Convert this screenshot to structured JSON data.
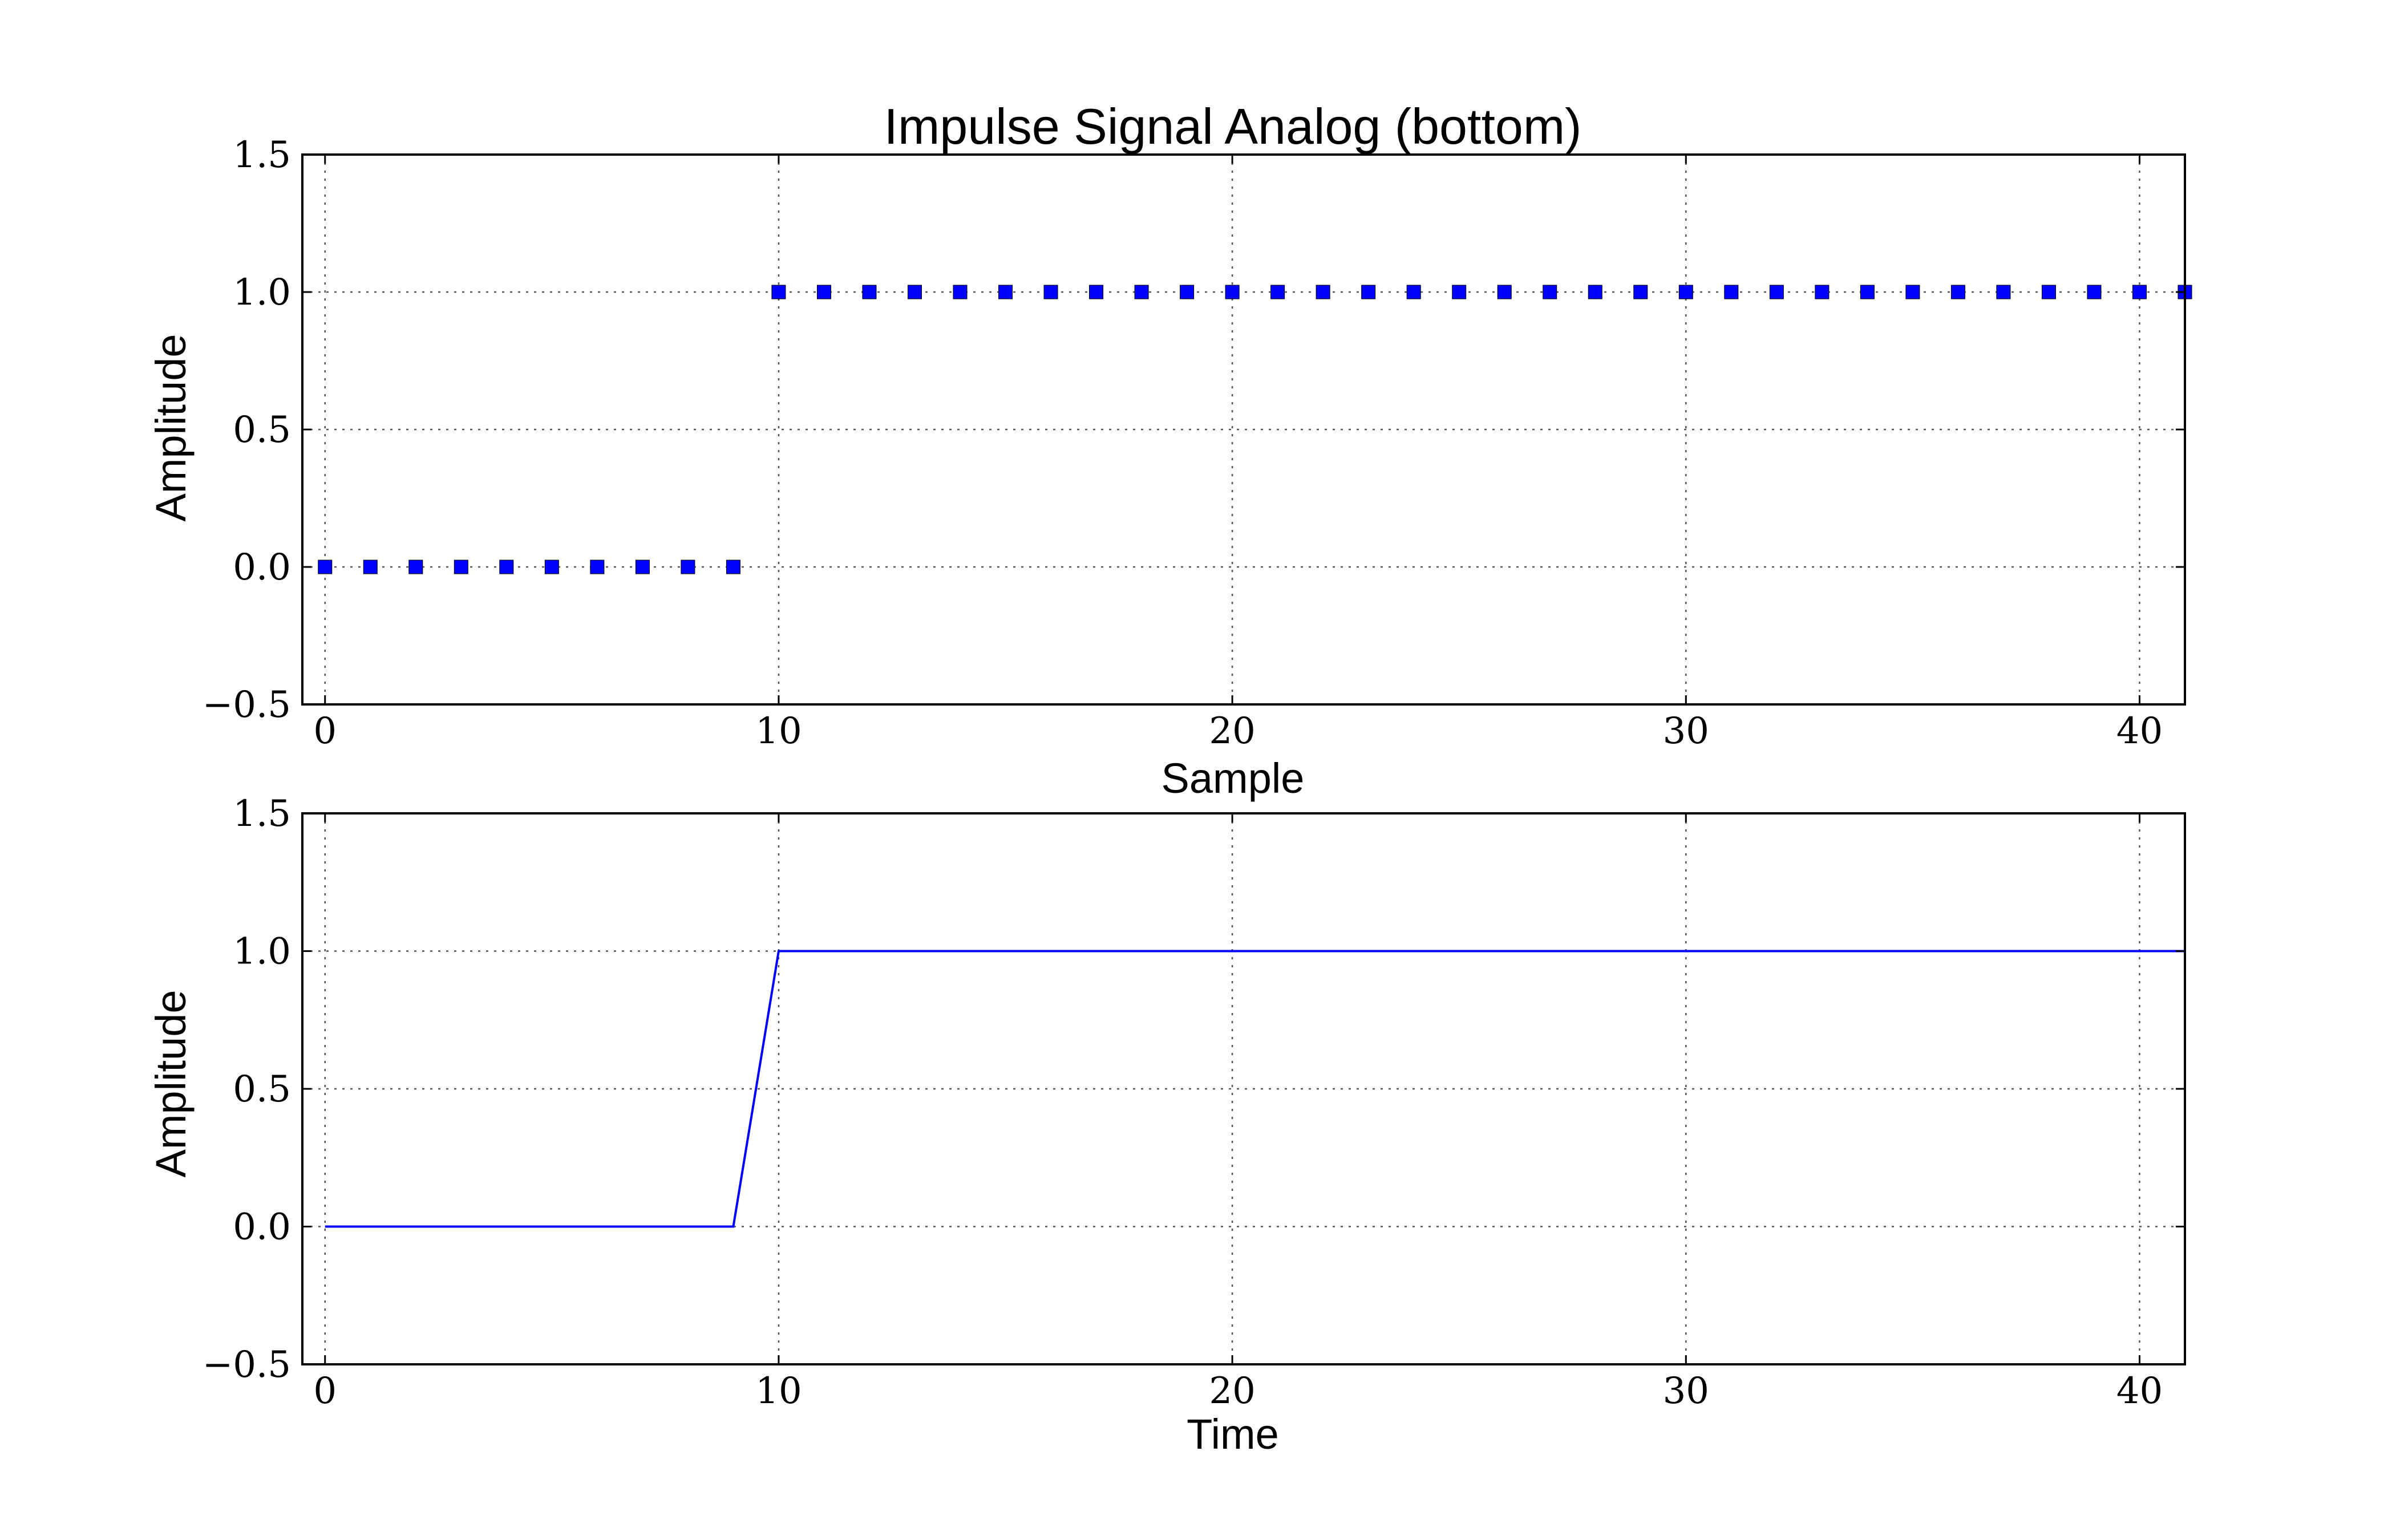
{
  "chart_data": [
    {
      "type": "scatter",
      "title": "Impulse Signal Analog (bottom)",
      "xlabel": "Sample",
      "ylabel": "Amplitude",
      "xlim": [
        -0.5,
        41
      ],
      "ylim": [
        -0.5,
        1.5
      ],
      "xticks": [
        0,
        10,
        20,
        30,
        40
      ],
      "yticks": [
        -0.5,
        0.0,
        0.5,
        1.0,
        1.5
      ],
      "xtick_labels": [
        "0",
        "10",
        "20",
        "30",
        "40"
      ],
      "ytick_labels": [
        "−0.5",
        "0.0",
        "0.5",
        "1.0",
        "1.5"
      ],
      "grid": true,
      "marker": "square",
      "series": [
        {
          "x": [
            0,
            1,
            2,
            3,
            4,
            5,
            6,
            7,
            8,
            9,
            10,
            11,
            12,
            13,
            14,
            15,
            16,
            17,
            18,
            19,
            20,
            21,
            22,
            23,
            24,
            25,
            26,
            27,
            28,
            29,
            30,
            31,
            32,
            33,
            34,
            35,
            36,
            37,
            38,
            39,
            40,
            41
          ],
          "values": [
            0,
            0,
            0,
            0,
            0,
            0,
            0,
            0,
            0,
            0,
            1,
            1,
            1,
            1,
            1,
            1,
            1,
            1,
            1,
            1,
            1,
            1,
            1,
            1,
            1,
            1,
            1,
            1,
            1,
            1,
            1,
            1,
            1,
            1,
            1,
            1,
            1,
            1,
            1,
            1,
            1,
            1
          ],
          "color": "#0000ff"
        }
      ]
    },
    {
      "type": "line",
      "title": "",
      "xlabel": "Time",
      "ylabel": "Amplitude",
      "xlim": [
        -0.5,
        41
      ],
      "ylim": [
        -0.5,
        1.5
      ],
      "xticks": [
        0,
        10,
        20,
        30,
        40
      ],
      "yticks": [
        -0.5,
        0.0,
        0.5,
        1.0,
        1.5
      ],
      "xtick_labels": [
        "0",
        "10",
        "20",
        "30",
        "40"
      ],
      "ytick_labels": [
        "−0.5",
        "0.0",
        "0.5",
        "1.0",
        "1.5"
      ],
      "grid": true,
      "series": [
        {
          "x": [
            0,
            1,
            2,
            3,
            4,
            5,
            6,
            7,
            8,
            9,
            10,
            11,
            12,
            13,
            14,
            15,
            16,
            17,
            18,
            19,
            20,
            21,
            22,
            23,
            24,
            25,
            26,
            27,
            28,
            29,
            30,
            31,
            32,
            33,
            34,
            35,
            36,
            37,
            38,
            39,
            40,
            41
          ],
          "values": [
            0,
            0,
            0,
            0,
            0,
            0,
            0,
            0,
            0,
            0,
            1,
            1,
            1,
            1,
            1,
            1,
            1,
            1,
            1,
            1,
            1,
            1,
            1,
            1,
            1,
            1,
            1,
            1,
            1,
            1,
            1,
            1,
            1,
            1,
            1,
            1,
            1,
            1,
            1,
            1,
            1,
            1
          ],
          "color": "#0000ff"
        }
      ]
    }
  ]
}
